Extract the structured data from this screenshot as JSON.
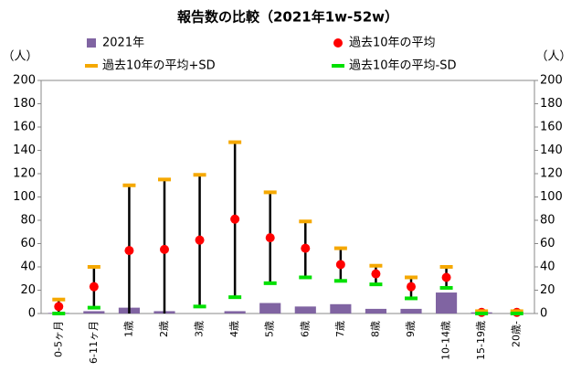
{
  "chart_data": {
    "type": "bar",
    "title": "報告数の比較（2021年1w-52w）",
    "y_label": "（人）",
    "categories": [
      "0-5ヶ月",
      "6-11ヶ月",
      "1歳",
      "2歳",
      "3歳",
      "4歳",
      "5歳",
      "6歳",
      "7歳",
      "8歳",
      "9歳",
      "10-14歳",
      "15-19歳",
      "20歳-"
    ],
    "series": [
      {
        "name": "2021年",
        "color": "#8064a2",
        "mark": "bar",
        "values": [
          0.5,
          2,
          5,
          2,
          0,
          2,
          9,
          6,
          8,
          4,
          4,
          18,
          1,
          0
        ]
      },
      {
        "name": "過去10年の平均",
        "color": "#ff0000",
        "mark": "dot",
        "values": [
          6,
          23,
          54,
          55,
          63,
          81,
          65,
          56,
          42,
          34,
          23,
          31,
          1,
          1
        ]
      },
      {
        "name": "過去10年の平均+SD",
        "color": "#f5a800",
        "mark": "dash",
        "values": [
          12,
          40,
          110,
          115,
          119,
          147,
          104,
          79,
          56,
          41,
          31,
          40,
          2,
          2
        ]
      },
      {
        "name": "過去10年の平均-SD",
        "color": "#00e000",
        "mark": "dash",
        "values": [
          0,
          5,
          null,
          null,
          6,
          14,
          26,
          31,
          28,
          25,
          13,
          22,
          0,
          0
        ]
      }
    ],
    "ylim": [
      0,
      200
    ],
    "yticks": [
      0,
      20,
      40,
      60,
      80,
      100,
      120,
      140,
      160,
      180,
      200
    ],
    "grid": false
  }
}
